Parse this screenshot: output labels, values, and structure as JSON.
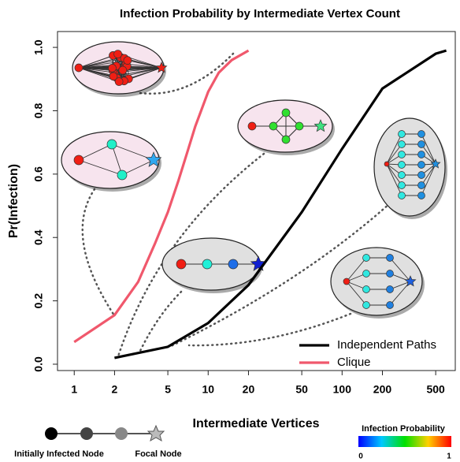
{
  "chart_data": {
    "type": "line",
    "title": "Infection Probability by Intermediate Vertex Count",
    "x_label": "Intermediate Vertices",
    "y_label": "Pr(Infection)",
    "xscale": "log",
    "xlim": [
      0.75,
      700
    ],
    "ylim": [
      -0.02,
      1.05
    ],
    "xticks": [
      1,
      2,
      5,
      10,
      20,
      50,
      100,
      200,
      500
    ],
    "yticks": [
      {
        "value": 0,
        "label": "0.0"
      },
      0.2,
      0.4,
      0.6,
      0.8,
      {
        "value": 1,
        "label": "1.0"
      }
    ],
    "legend": "lower right",
    "series": [
      {
        "name": "Independent Paths",
        "color": "#000000",
        "x": [
          2,
          5,
          10,
          20,
          50,
          100,
          200,
          500,
          600
        ],
        "values": [
          0.02,
          0.055,
          0.13,
          0.25,
          0.48,
          0.68,
          0.87,
          0.98,
          0.99
        ]
      },
      {
        "name": "Clique",
        "color": "#f0586c",
        "x": [
          1,
          2,
          3,
          4,
          5,
          6,
          7,
          8,
          10,
          12,
          15,
          20
        ],
        "values": [
          0.07,
          0.155,
          0.26,
          0.38,
          0.48,
          0.58,
          0.67,
          0.75,
          0.86,
          0.92,
          0.96,
          0.99
        ]
      }
    ],
    "node_legend": {
      "start": "Initially Infected Node",
      "end": "Focal Node"
    },
    "colorbar": {
      "title": "Infection Probability",
      "ticks": [
        0,
        1
      ]
    }
  }
}
